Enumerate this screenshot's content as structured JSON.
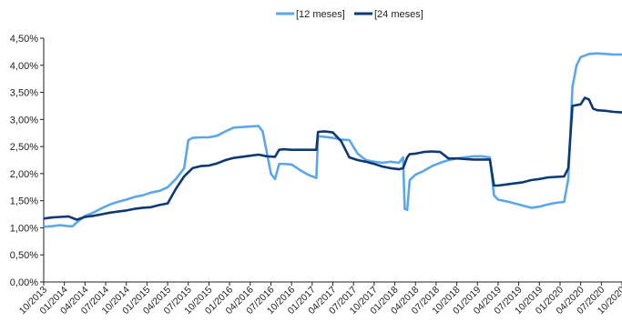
{
  "chart_data": {
    "type": "line",
    "title": "",
    "xlabel": "",
    "ylabel": "",
    "ylim": [
      0,
      4.5
    ],
    "yticks": [
      "0,00%",
      "0,50%",
      "1,00%",
      "1,50%",
      "2,00%",
      "2,50%",
      "3,00%",
      "3,50%",
      "4,00%",
      "4,50%"
    ],
    "xticks": [
      "10/2013",
      "01/2014",
      "04/2014",
      "07/2014",
      "10/2014",
      "01/2015",
      "04/2015",
      "07/2015",
      "10/2015",
      "01/2016",
      "04/2016",
      "07/2016",
      "10/2016",
      "01/2017",
      "04/2017",
      "07/2017",
      "10/2017",
      "01/2018",
      "04/2018",
      "07/2018",
      "10/2018",
      "01/2019",
      "04/2019",
      "07/2019",
      "10/2019",
      "01/2020",
      "04/2020",
      "07/2020",
      "10/2020"
    ],
    "grid": false,
    "legend_position": "top-center",
    "series": [
      {
        "name": "[12 meses]",
        "color": "#5ba7ee",
        "points": [
          [
            0,
            1.02
          ],
          [
            1,
            1.03
          ],
          [
            2,
            1.05
          ],
          [
            3,
            1.03
          ],
          [
            3.5,
            1.03
          ],
          [
            4,
            1.1
          ],
          [
            5,
            1.22
          ],
          [
            6,
            1.28
          ],
          [
            7,
            1.36
          ],
          [
            8,
            1.43
          ],
          [
            9,
            1.48
          ],
          [
            10,
            1.52
          ],
          [
            11,
            1.57
          ],
          [
            12,
            1.6
          ],
          [
            13,
            1.65
          ],
          [
            14,
            1.68
          ],
          [
            15,
            1.75
          ],
          [
            16,
            1.9
          ],
          [
            17,
            2.1
          ],
          [
            17.5,
            2.62
          ],
          [
            18,
            2.66
          ],
          [
            19,
            2.67
          ],
          [
            20,
            2.67
          ],
          [
            21,
            2.7
          ],
          [
            22,
            2.78
          ],
          [
            23,
            2.85
          ],
          [
            24,
            2.86
          ],
          [
            25,
            2.87
          ],
          [
            26,
            2.88
          ],
          [
            26.5,
            2.78
          ],
          [
            27,
            2.4
          ],
          [
            27.5,
            2.0
          ],
          [
            28,
            1.9
          ],
          [
            28.5,
            2.18
          ],
          [
            29,
            2.18
          ],
          [
            30,
            2.17
          ],
          [
            31,
            2.07
          ],
          [
            32,
            1.98
          ],
          [
            33,
            1.92
          ],
          [
            33.2,
            2.69
          ],
          [
            34,
            2.68
          ],
          [
            35,
            2.66
          ],
          [
            36,
            2.63
          ],
          [
            37,
            2.62
          ],
          [
            38,
            2.37
          ],
          [
            39,
            2.25
          ],
          [
            40,
            2.22
          ],
          [
            41,
            2.2
          ],
          [
            42,
            2.22
          ],
          [
            43,
            2.2
          ],
          [
            43.5,
            2.3
          ],
          [
            43.7,
            1.35
          ],
          [
            44,
            1.33
          ],
          [
            44.3,
            1.88
          ],
          [
            45,
            1.98
          ],
          [
            46,
            2.05
          ],
          [
            47,
            2.14
          ],
          [
            48,
            2.2
          ],
          [
            49,
            2.25
          ],
          [
            50,
            2.28
          ],
          [
            51,
            2.3
          ],
          [
            52,
            2.32
          ],
          [
            53,
            2.32
          ],
          [
            54,
            2.3
          ],
          [
            54.5,
            1.6
          ],
          [
            55,
            1.52
          ],
          [
            56,
            1.49
          ],
          [
            57,
            1.45
          ],
          [
            58,
            1.41
          ],
          [
            59,
            1.37
          ],
          [
            60,
            1.39
          ],
          [
            61,
            1.43
          ],
          [
            62,
            1.46
          ],
          [
            63,
            1.48
          ],
          [
            63.5,
            1.9
          ],
          [
            64,
            3.6
          ],
          [
            64.5,
            4.0
          ],
          [
            65,
            4.15
          ],
          [
            66,
            4.21
          ],
          [
            67,
            4.22
          ],
          [
            68,
            4.21
          ],
          [
            69,
            4.2
          ],
          [
            70,
            4.2
          ]
        ]
      },
      {
        "name": "[24 meses]",
        "color": "#0d3a75",
        "points": [
          [
            0,
            1.17
          ],
          [
            1,
            1.19
          ],
          [
            2,
            1.2
          ],
          [
            3,
            1.21
          ],
          [
            4,
            1.15
          ],
          [
            5,
            1.2
          ],
          [
            6,
            1.22
          ],
          [
            7,
            1.25
          ],
          [
            8,
            1.28
          ],
          [
            9,
            1.3
          ],
          [
            10,
            1.32
          ],
          [
            11,
            1.35
          ],
          [
            12,
            1.37
          ],
          [
            13,
            1.38
          ],
          [
            14,
            1.42
          ],
          [
            15,
            1.45
          ],
          [
            16,
            1.72
          ],
          [
            17,
            1.95
          ],
          [
            18,
            2.1
          ],
          [
            19,
            2.14
          ],
          [
            20,
            2.15
          ],
          [
            21,
            2.19
          ],
          [
            22,
            2.25
          ],
          [
            23,
            2.29
          ],
          [
            24,
            2.31
          ],
          [
            25,
            2.33
          ],
          [
            26,
            2.35
          ],
          [
            27,
            2.32
          ],
          [
            28,
            2.31
          ],
          [
            28.5,
            2.44
          ],
          [
            29,
            2.45
          ],
          [
            30,
            2.44
          ],
          [
            31,
            2.44
          ],
          [
            32,
            2.44
          ],
          [
            33,
            2.44
          ],
          [
            33.2,
            2.77
          ],
          [
            34,
            2.78
          ],
          [
            35,
            2.76
          ],
          [
            36,
            2.6
          ],
          [
            37,
            2.3
          ],
          [
            38,
            2.25
          ],
          [
            39,
            2.22
          ],
          [
            40,
            2.18
          ],
          [
            41,
            2.13
          ],
          [
            42,
            2.1
          ],
          [
            43,
            2.08
          ],
          [
            43.5,
            2.1
          ],
          [
            44,
            2.3
          ],
          [
            44.3,
            2.36
          ],
          [
            45,
            2.37
          ],
          [
            46,
            2.4
          ],
          [
            47,
            2.41
          ],
          [
            48,
            2.4
          ],
          [
            49,
            2.28
          ],
          [
            50,
            2.28
          ],
          [
            51,
            2.27
          ],
          [
            52,
            2.26
          ],
          [
            53,
            2.26
          ],
          [
            54,
            2.26
          ],
          [
            54.5,
            1.78
          ],
          [
            55,
            1.78
          ],
          [
            56,
            1.8
          ],
          [
            57,
            1.82
          ],
          [
            58,
            1.84
          ],
          [
            59,
            1.88
          ],
          [
            60,
            1.9
          ],
          [
            61,
            1.93
          ],
          [
            62,
            1.94
          ],
          [
            63,
            1.95
          ],
          [
            63.5,
            2.1
          ],
          [
            63.8,
            2.8
          ],
          [
            64,
            3.25
          ],
          [
            65,
            3.28
          ],
          [
            65.5,
            3.4
          ],
          [
            66,
            3.37
          ],
          [
            66.5,
            3.2
          ],
          [
            67,
            3.17
          ],
          [
            68,
            3.16
          ],
          [
            69,
            3.14
          ],
          [
            70,
            3.13
          ]
        ]
      }
    ]
  }
}
